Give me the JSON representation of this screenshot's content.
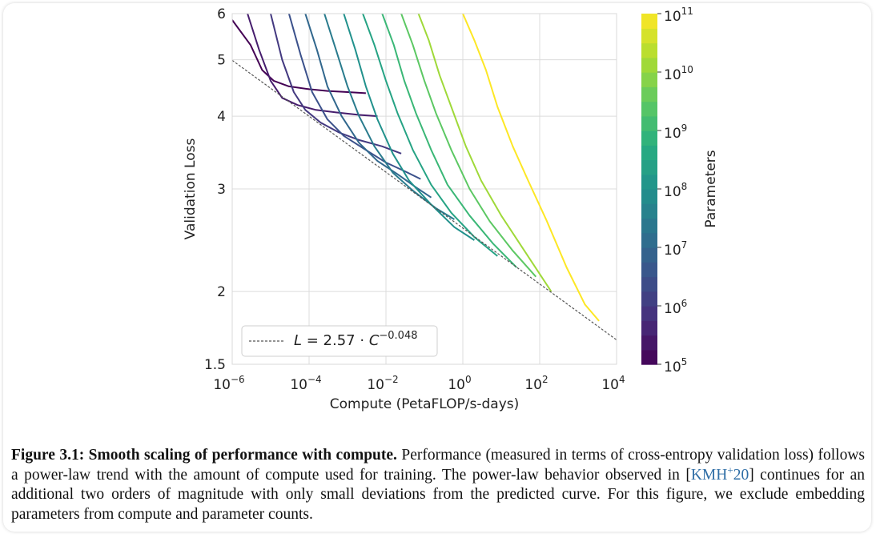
{
  "chart_data": {
    "type": "line",
    "xlabel": "Compute (PetaFLOP/s-days)",
    "ylabel": "Validation Loss",
    "xscale": "log",
    "yscale": "log",
    "xlim": [
      1e-06,
      10000.0
    ],
    "ylim": [
      1.5,
      6
    ],
    "x_ticks": [
      {
        "value": 1e-06,
        "base": "10",
        "exp": "−6"
      },
      {
        "value": 0.0001,
        "base": "10",
        "exp": "−4"
      },
      {
        "value": 0.01,
        "base": "10",
        "exp": "−2"
      },
      {
        "value": 1.0,
        "base": "10",
        "exp": "0"
      },
      {
        "value": 100.0,
        "base": "10",
        "exp": "2"
      },
      {
        "value": 10000.0,
        "base": "10",
        "exp": "4"
      }
    ],
    "y_ticks": [
      {
        "value": 1.5,
        "label": "1.5"
      },
      {
        "value": 2,
        "label": "2"
      },
      {
        "value": 3,
        "label": "3"
      },
      {
        "value": 4,
        "label": "4"
      },
      {
        "value": 5,
        "label": "5"
      },
      {
        "value": 6,
        "label": "6"
      }
    ],
    "grid": true,
    "legend_position": "lower-left",
    "fit_line": {
      "label_parts": {
        "L": "L",
        "eq": " = 2.57 · ",
        "C": "C",
        "exp": "−0.048"
      },
      "coefficient": 2.57,
      "exponent": -0.048,
      "style": "dashed",
      "color": "#555555"
    },
    "colorbar": {
      "label": "Parameters",
      "scale": "log",
      "range": [
        100000.0,
        100000000000.0
      ],
      "colormap": "viridis",
      "ticks": [
        {
          "value": 100000.0,
          "base": "10",
          "exp": "5"
        },
        {
          "value": 1000000.0,
          "base": "10",
          "exp": "6"
        },
        {
          "value": 10000000.0,
          "base": "10",
          "exp": "7"
        },
        {
          "value": 100000000.0,
          "base": "10",
          "exp": "8"
        },
        {
          "value": 1000000000.0,
          "base": "10",
          "exp": "9"
        },
        {
          "value": 10000000000.0,
          "base": "10",
          "exp": "10"
        },
        {
          "value": 100000000000.0,
          "base": "10",
          "exp": "11"
        }
      ]
    },
    "series": [
      {
        "params": 100000.0,
        "points": [
          [
            1e-06,
            5.85
          ],
          [
            3e-06,
            5.3
          ],
          [
            6e-06,
            4.8
          ],
          [
            1.2e-05,
            4.6
          ],
          [
            3e-05,
            4.5
          ],
          [
            0.0001,
            4.45
          ],
          [
            0.0003,
            4.42
          ],
          [
            0.001,
            4.4
          ],
          [
            0.003,
            4.38
          ]
        ]
      },
      {
        "params": 300000.0,
        "points": [
          [
            2.5e-06,
            6.0
          ],
          [
            5e-06,
            5.2
          ],
          [
            1e-05,
            4.6
          ],
          [
            2e-05,
            4.3
          ],
          [
            5e-05,
            4.18
          ],
          [
            0.00015,
            4.1
          ],
          [
            0.0005,
            4.06
          ],
          [
            0.002,
            4.02
          ],
          [
            0.006,
            4.0
          ]
        ]
      },
      {
        "params": 1000000.0,
        "points": [
          [
            1e-05,
            6.0
          ],
          [
            2e-05,
            5.0
          ],
          [
            4e-05,
            4.4
          ],
          [
            8e-05,
            4.1
          ],
          [
            0.0002,
            3.9
          ],
          [
            0.0006,
            3.75
          ],
          [
            0.002,
            3.64
          ],
          [
            0.008,
            3.55
          ],
          [
            0.025,
            3.45
          ]
        ]
      },
      {
        "params": 3000000.0,
        "points": [
          [
            3e-05,
            6.0
          ],
          [
            6e-05,
            5.1
          ],
          [
            0.00012,
            4.4
          ],
          [
            0.0003,
            3.95
          ],
          [
            0.0008,
            3.7
          ],
          [
            0.003,
            3.5
          ],
          [
            0.01,
            3.33
          ],
          [
            0.03,
            3.22
          ],
          [
            0.08,
            3.12
          ]
        ]
      },
      {
        "params": 10000000.0,
        "points": [
          [
            8e-05,
            6.0
          ],
          [
            0.00016,
            5.2
          ],
          [
            0.0003,
            4.5
          ],
          [
            0.0007,
            4.0
          ],
          [
            0.002,
            3.6
          ],
          [
            0.006,
            3.35
          ],
          [
            0.02,
            3.18
          ],
          [
            0.06,
            3.02
          ],
          [
            0.15,
            2.9
          ]
        ]
      },
      {
        "params": 30000000.0,
        "points": [
          [
            0.00025,
            6.0
          ],
          [
            0.0005,
            5.2
          ],
          [
            0.001,
            4.5
          ],
          [
            0.002,
            4.0
          ],
          [
            0.005,
            3.55
          ],
          [
            0.015,
            3.2
          ],
          [
            0.05,
            2.98
          ],
          [
            0.2,
            2.78
          ],
          [
            0.6,
            2.66
          ]
        ]
      },
      {
        "params": 100000000.0,
        "points": [
          [
            0.0008,
            6.0
          ],
          [
            0.0016,
            5.2
          ],
          [
            0.003,
            4.5
          ],
          [
            0.006,
            3.95
          ],
          [
            0.015,
            3.45
          ],
          [
            0.04,
            3.1
          ],
          [
            0.15,
            2.82
          ],
          [
            0.6,
            2.58
          ],
          [
            2.0,
            2.45
          ]
        ]
      },
      {
        "params": 300000000.0,
        "points": [
          [
            0.0025,
            6.0
          ],
          [
            0.005,
            5.3
          ],
          [
            0.01,
            4.6
          ],
          [
            0.02,
            4.05
          ],
          [
            0.05,
            3.5
          ],
          [
            0.15,
            3.05
          ],
          [
            0.5,
            2.73
          ],
          [
            2.0,
            2.48
          ],
          [
            8.0,
            2.3
          ]
        ]
      },
      {
        "params": 1000000000.0,
        "points": [
          [
            0.008,
            6.0
          ],
          [
            0.016,
            5.3
          ],
          [
            0.03,
            4.6
          ],
          [
            0.06,
            4.05
          ],
          [
            0.15,
            3.5
          ],
          [
            0.4,
            3.05
          ],
          [
            1.5,
            2.7
          ],
          [
            6.0,
            2.42
          ],
          [
            25.0,
            2.2
          ]
        ]
      },
      {
        "params": 3000000000.0,
        "points": [
          [
            0.025,
            6.0
          ],
          [
            0.05,
            5.3
          ],
          [
            0.1,
            4.6
          ],
          [
            0.2,
            4.05
          ],
          [
            0.5,
            3.5
          ],
          [
            1.5,
            3.0
          ],
          [
            5.0,
            2.64
          ],
          [
            20.0,
            2.35
          ],
          [
            80.0,
            2.12
          ]
        ]
      },
      {
        "params": 13000000000.0,
        "points": [
          [
            0.07,
            6.0
          ],
          [
            0.13,
            5.4
          ],
          [
            0.25,
            4.7
          ],
          [
            0.5,
            4.15
          ],
          [
            1.2,
            3.55
          ],
          [
            3.0,
            3.1
          ],
          [
            10.0,
            2.7
          ],
          [
            40.0,
            2.35
          ],
          [
            200.0,
            2.0
          ]
        ]
      },
      {
        "params": 175000000000.0,
        "points": [
          [
            1.0,
            6.0
          ],
          [
            2.0,
            5.4
          ],
          [
            4.0,
            4.8
          ],
          [
            8.0,
            4.15
          ],
          [
            20.0,
            3.55
          ],
          [
            50.0,
            3.1
          ],
          [
            150.0,
            2.65
          ],
          [
            500.0,
            2.2
          ],
          [
            1500.0,
            1.9
          ],
          [
            3500.0,
            1.78
          ]
        ]
      }
    ]
  },
  "caption": {
    "figure_label": "Figure 3.1:",
    "title": " Smooth scaling of performance with compute.",
    "text_before_cite": " Performance (measured in terms of cross-entropy validation loss) follows a power-law trend with the amount of compute used for training. The power-law behavior observed in [",
    "cite_main": "KMH",
    "cite_sup": "+",
    "cite_year": "20",
    "text_after_cite": "] continues for an additional two orders of magnitude with only small deviations from the predicted curve. For this figure, we exclude embedding parameters from compute and parameter counts."
  }
}
